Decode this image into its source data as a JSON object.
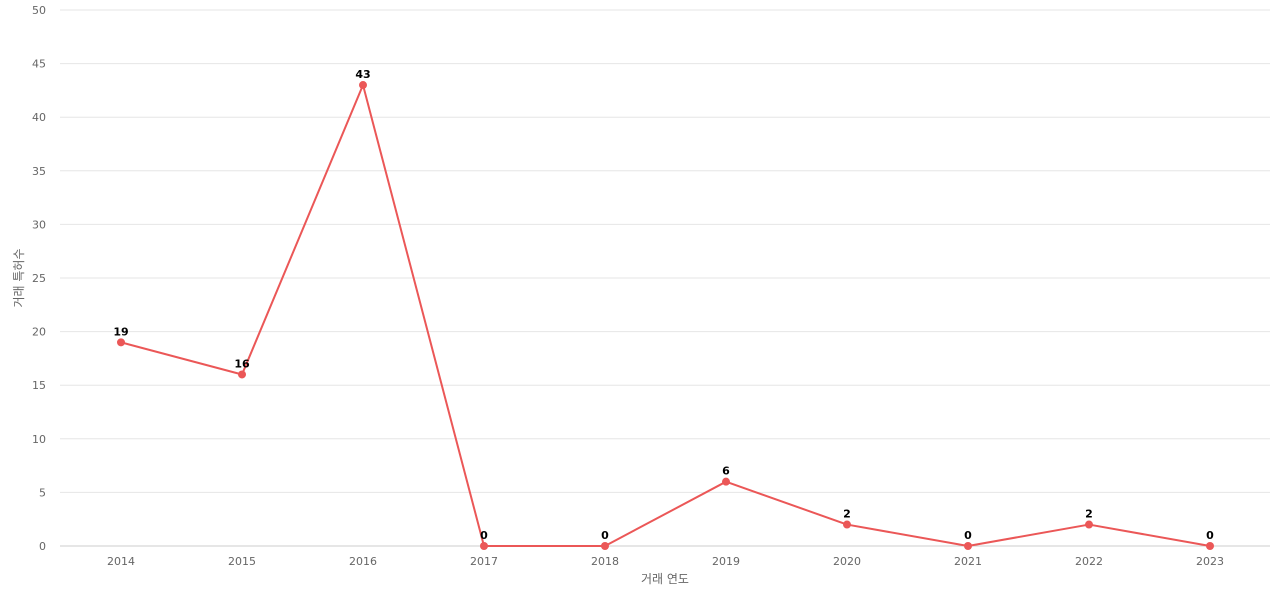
{
  "chart_data": {
    "type": "line",
    "title": "",
    "xlabel": "거래 연도",
    "ylabel": "거래 특허수",
    "categories": [
      "2014",
      "2015",
      "2016",
      "2017",
      "2018",
      "2019",
      "2020",
      "2021",
      "2022",
      "2023"
    ],
    "series": [
      {
        "values": [
          19,
          16,
          43,
          0,
          0,
          6,
          2,
          0,
          2,
          0
        ],
        "color": "#eb5757"
      }
    ],
    "ylim": [
      0,
      50
    ],
    "yticks": [
      0,
      5,
      10,
      15,
      20,
      25,
      30,
      35,
      40,
      45,
      50
    ],
    "grid": true,
    "data_labels": true
  }
}
